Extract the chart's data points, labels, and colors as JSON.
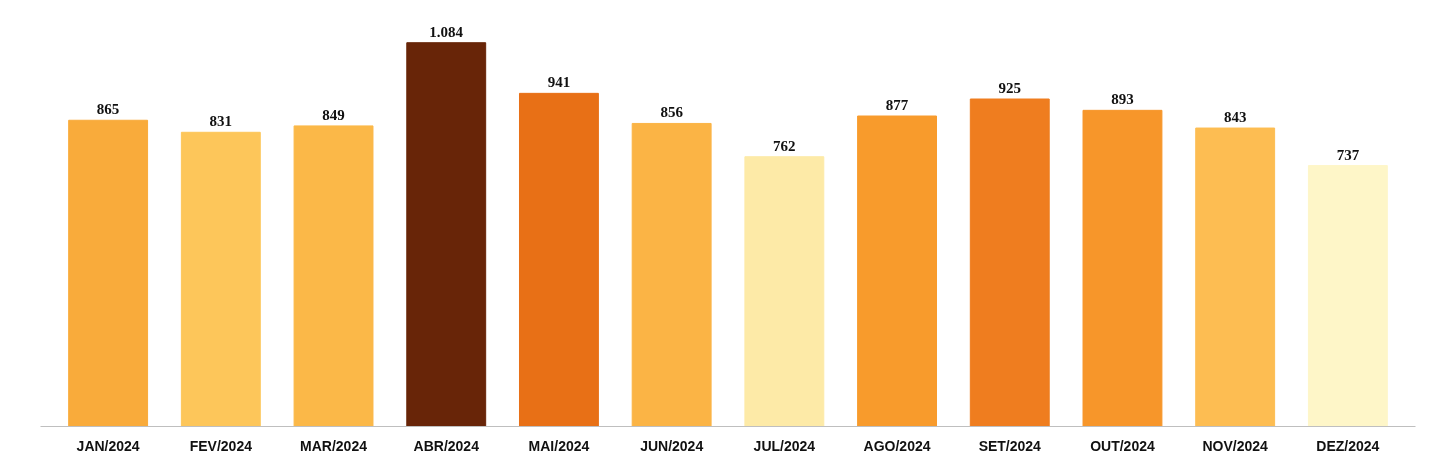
{
  "chart_data": {
    "type": "bar",
    "categories": [
      "JAN/2024",
      "FEV/2024",
      "MAR/2024",
      "ABR/2024",
      "MAI/2024",
      "JUN/2024",
      "JUL/2024",
      "AGO/2024",
      "SET/2024",
      "OUT/2024",
      "NOV/2024",
      "DEZ/2024"
    ],
    "values": [
      865,
      831,
      849,
      1084,
      941,
      856,
      762,
      877,
      925,
      893,
      843,
      737
    ],
    "value_labels": [
      "865",
      "831",
      "849",
      "1.084",
      "941",
      "856",
      "762",
      "877",
      "925",
      "893",
      "843",
      "737"
    ],
    "colors": [
      "#f9ab3b",
      "#fdc65a",
      "#fbb848",
      "#682508",
      "#e87016",
      "#fbb445",
      "#fdeaa7",
      "#f89b2c",
      "#ef7d1f",
      "#f7962a",
      "#fdbd52",
      "#fef6c8"
    ],
    "legend": false
  }
}
